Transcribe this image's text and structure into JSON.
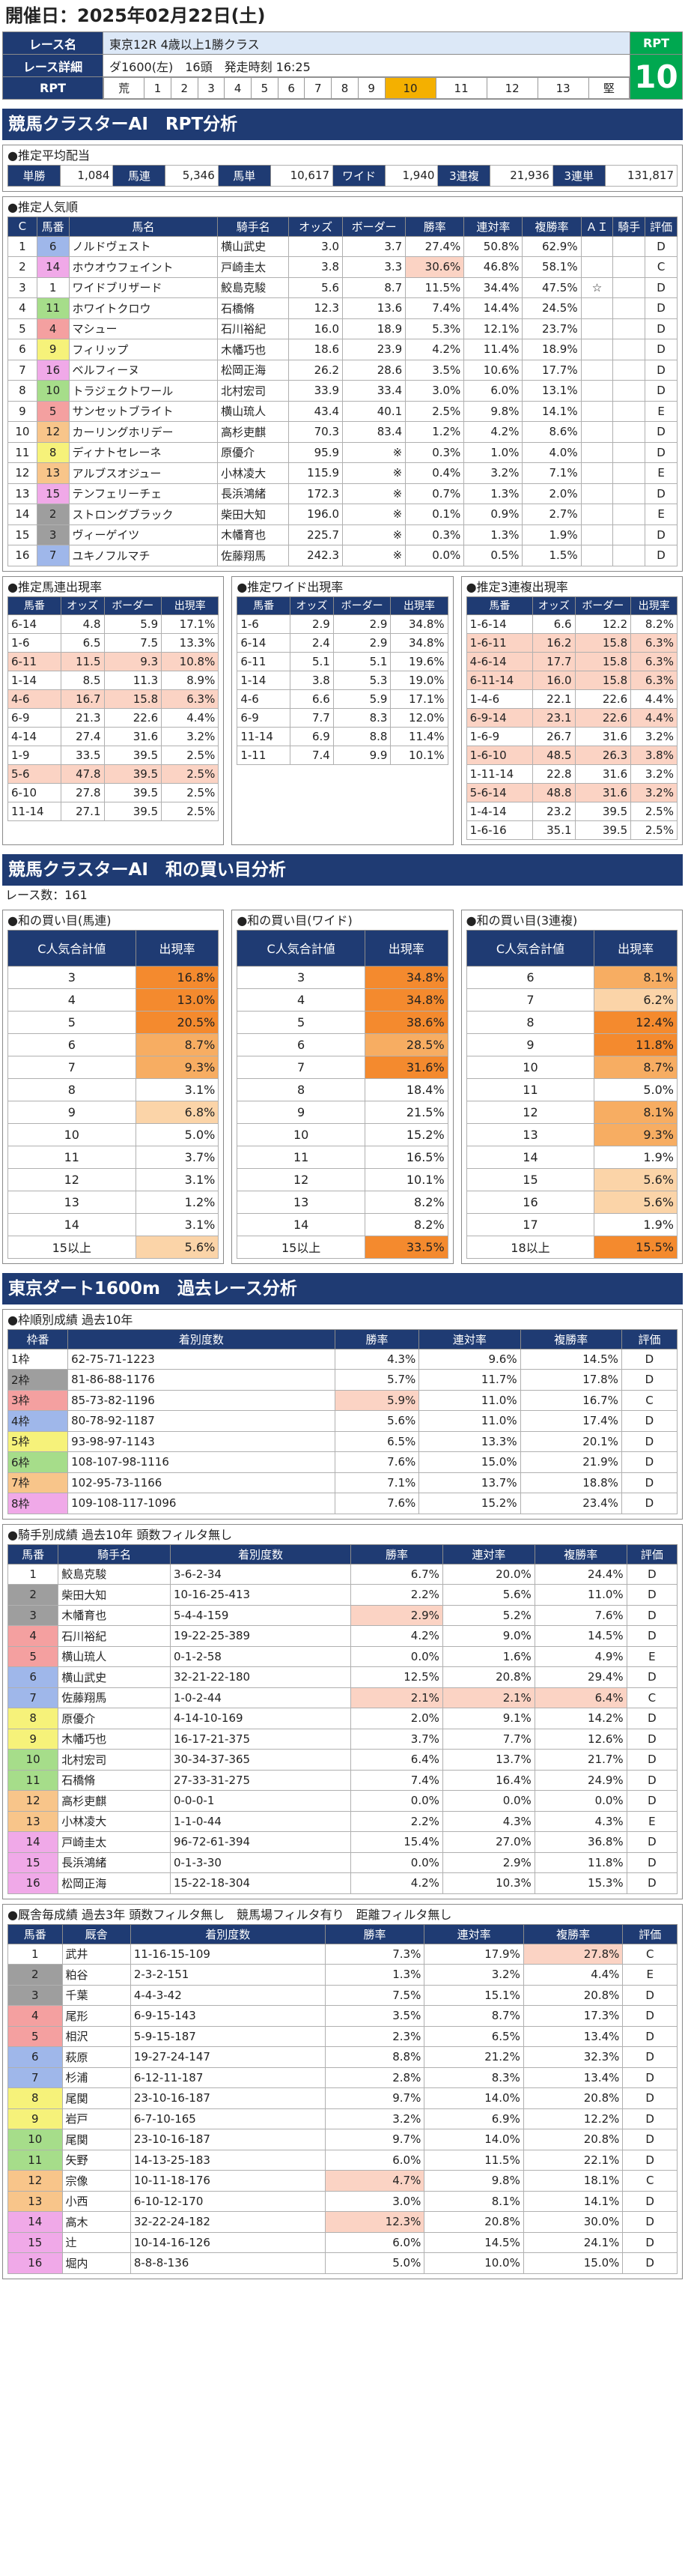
{
  "header": {
    "date": "開催日：2025年02月22日(土)"
  },
  "race": {
    "name_label": "レース名",
    "name": "東京12R 4歳以上1勝クラス",
    "detail_label": "レース詳細",
    "detail": "ダ1600(左)　16頭　発走時刻 16:25",
    "rpt_label": "RPT",
    "rpt_value": "10",
    "nums": [
      "荒",
      "1",
      "2",
      "3",
      "4",
      "5",
      "6",
      "7",
      "8",
      "9",
      "10",
      "11",
      "12",
      "13",
      "堅"
    ],
    "highlight_index": 10
  },
  "sec1": {
    "title": "競馬クラスターAI　RPT分析"
  },
  "avg": {
    "title": "●推定平均配当",
    "items": [
      [
        "単勝",
        "1,084"
      ],
      [
        "馬連",
        "5,346"
      ],
      [
        "馬単",
        "10,617"
      ],
      [
        "ワイド",
        "1,940"
      ],
      [
        "3連複",
        "21,936"
      ],
      [
        "3連単",
        "131,817"
      ]
    ]
  },
  "pop": {
    "title": "●推定人気順",
    "headers": [
      "C",
      "馬番",
      "馬名",
      "騎手名",
      "オッズ",
      "ボーダー",
      "勝率",
      "連対率",
      "複勝率",
      "ＡＩ",
      "騎手",
      "評価"
    ],
    "rows": [
      [
        "1",
        "6",
        "ノルドヴェスト",
        "横山武史",
        "3.0",
        "3.7",
        "27.4%",
        "50.8%",
        "62.9%",
        "",
        "",
        "D"
      ],
      [
        "2",
        "14",
        "ホウオウフェイント",
        "戸崎圭太",
        "3.8",
        "3.3",
        "30.6%",
        "46.8%",
        "58.1%",
        "",
        "",
        "C"
      ],
      [
        "3",
        "1",
        "ワイドブリザード",
        "鮫島克駿",
        "5.6",
        "8.7",
        "11.5%",
        "34.4%",
        "47.5%",
        "☆",
        "",
        "D"
      ],
      [
        "4",
        "11",
        "ホワイトクロウ",
        "石橋脩",
        "12.3",
        "13.6",
        "7.4%",
        "14.4%",
        "24.5%",
        "",
        "",
        "D"
      ],
      [
        "5",
        "4",
        "マシュー",
        "石川裕紀",
        "16.0",
        "18.9",
        "5.3%",
        "12.1%",
        "23.7%",
        "",
        "",
        "D"
      ],
      [
        "6",
        "9",
        "フィリップ",
        "木幡巧也",
        "18.6",
        "23.9",
        "4.2%",
        "11.4%",
        "18.9%",
        "",
        "",
        "D"
      ],
      [
        "7",
        "16",
        "ベルフィーヌ",
        "松岡正海",
        "26.2",
        "28.6",
        "3.5%",
        "10.6%",
        "17.7%",
        "",
        "",
        "D"
      ],
      [
        "8",
        "10",
        "トラジェクトワール",
        "北村宏司",
        "33.9",
        "33.4",
        "3.0%",
        "6.0%",
        "13.1%",
        "",
        "",
        "D"
      ],
      [
        "9",
        "5",
        "サンセットブライト",
        "横山琉人",
        "43.4",
        "40.1",
        "2.5%",
        "9.8%",
        "14.1%",
        "",
        "",
        "E"
      ],
      [
        "10",
        "12",
        "カーリングホリデー",
        "高杉吏麒",
        "70.3",
        "83.4",
        "1.2%",
        "4.2%",
        "8.6%",
        "",
        "",
        "D"
      ],
      [
        "11",
        "8",
        "ディナトセレーネ",
        "原優介",
        "95.9",
        "※",
        "0.3%",
        "1.0%",
        "4.0%",
        "",
        "",
        "D"
      ],
      [
        "12",
        "13",
        "アルブスオジュー",
        "小林凌大",
        "115.9",
        "※",
        "0.4%",
        "3.2%",
        "7.1%",
        "",
        "",
        "E"
      ],
      [
        "13",
        "15",
        "テンフェリーチェ",
        "長浜鴻緒",
        "172.3",
        "※",
        "0.7%",
        "1.3%",
        "2.0%",
        "",
        "",
        "D"
      ],
      [
        "14",
        "2",
        "ストロングブラック",
        "柴田大知",
        "196.0",
        "※",
        "0.1%",
        "0.9%",
        "2.7%",
        "",
        "",
        "E"
      ],
      [
        "15",
        "3",
        "ヴィーゲイツ",
        "木幡育也",
        "225.7",
        "※",
        "0.3%",
        "1.3%",
        "1.9%",
        "",
        "",
        "D"
      ],
      [
        "16",
        "7",
        "ユキノフルマチ",
        "佐藤翔馬",
        "242.3",
        "※",
        "0.0%",
        "0.5%",
        "1.5%",
        "",
        "",
        "D"
      ]
    ]
  },
  "umaren": {
    "title": "●推定馬連出現率",
    "headers": [
      "馬番",
      "オッズ",
      "ボーダー",
      "出現率"
    ],
    "rows": [
      [
        "6-14",
        "4.8",
        "5.9",
        "17.1%"
      ],
      [
        "1-6",
        "6.5",
        "7.5",
        "13.3%"
      ],
      [
        "6-11",
        "11.5",
        "9.3",
        "10.8%"
      ],
      [
        "1-14",
        "8.5",
        "11.3",
        "8.9%"
      ],
      [
        "4-6",
        "16.7",
        "15.8",
        "6.3%"
      ],
      [
        "6-9",
        "21.3",
        "22.6",
        "4.4%"
      ],
      [
        "4-14",
        "27.4",
        "31.6",
        "3.2%"
      ],
      [
        "1-9",
        "33.5",
        "39.5",
        "2.5%"
      ],
      [
        "5-6",
        "47.8",
        "39.5",
        "2.5%"
      ],
      [
        "6-10",
        "27.8",
        "39.5",
        "2.5%"
      ],
      [
        "11-14",
        "27.1",
        "39.5",
        "2.5%"
      ]
    ]
  },
  "wide": {
    "title": "●推定ワイド出現率",
    "headers": [
      "馬番",
      "オッズ",
      "ボーダー",
      "出現率"
    ],
    "rows": [
      [
        "1-6",
        "2.9",
        "2.9",
        "34.8%"
      ],
      [
        "6-14",
        "2.4",
        "2.9",
        "34.8%"
      ],
      [
        "6-11",
        "5.1",
        "5.1",
        "19.6%"
      ],
      [
        "1-14",
        "3.8",
        "5.3",
        "19.0%"
      ],
      [
        "4-6",
        "6.6",
        "5.9",
        "17.1%"
      ],
      [
        "6-9",
        "7.7",
        "8.3",
        "12.0%"
      ],
      [
        "11-14",
        "6.9",
        "8.8",
        "11.4%"
      ],
      [
        "1-11",
        "7.4",
        "9.9",
        "10.1%"
      ]
    ]
  },
  "sanrenpuku": {
    "title": "●推定3連複出現率",
    "headers": [
      "馬番",
      "オッズ",
      "ボーダー",
      "出現率"
    ],
    "rows": [
      [
        "1-6-14",
        "6.6",
        "12.2",
        "8.2%"
      ],
      [
        "1-6-11",
        "16.2",
        "15.8",
        "6.3%"
      ],
      [
        "4-6-14",
        "17.7",
        "15.8",
        "6.3%"
      ],
      [
        "6-11-14",
        "16.0",
        "15.8",
        "6.3%"
      ],
      [
        "1-4-6",
        "22.1",
        "22.6",
        "4.4%"
      ],
      [
        "6-9-14",
        "23.1",
        "22.6",
        "4.4%"
      ],
      [
        "1-6-9",
        "26.7",
        "31.6",
        "3.2%"
      ],
      [
        "1-6-10",
        "48.5",
        "26.3",
        "3.8%"
      ],
      [
        "1-11-14",
        "22.8",
        "31.6",
        "3.2%"
      ],
      [
        "5-6-14",
        "48.8",
        "31.6",
        "3.2%"
      ],
      [
        "1-4-14",
        "23.2",
        "39.5",
        "2.5%"
      ],
      [
        "1-6-16",
        "35.1",
        "39.5",
        "2.5%"
      ]
    ]
  },
  "sec2": {
    "title": "競馬クラスターAI　和の買い目分析",
    "count": "レース数：161"
  },
  "buy1": {
    "title": "●和の買い目(馬連)",
    "h1": "C人気合計値",
    "h2": "出現率",
    "rows": [
      [
        "3",
        "16.8%"
      ],
      [
        "4",
        "13.0%"
      ],
      [
        "5",
        "20.5%"
      ],
      [
        "6",
        "8.7%"
      ],
      [
        "7",
        "9.3%"
      ],
      [
        "8",
        "3.1%"
      ],
      [
        "9",
        "6.8%"
      ],
      [
        "10",
        "5.0%"
      ],
      [
        "11",
        "3.7%"
      ],
      [
        "12",
        "3.1%"
      ],
      [
        "13",
        "1.2%"
      ],
      [
        "14",
        "3.1%"
      ],
      [
        "15以上",
        "5.6%"
      ]
    ]
  },
  "buy2": {
    "title": "●和の買い目(ワイド)",
    "h1": "C人気合計値",
    "h2": "出現率",
    "rows": [
      [
        "3",
        "34.8%"
      ],
      [
        "4",
        "34.8%"
      ],
      [
        "5",
        "38.6%"
      ],
      [
        "6",
        "28.5%"
      ],
      [
        "7",
        "31.6%"
      ],
      [
        "8",
        "18.4%"
      ],
      [
        "9",
        "21.5%"
      ],
      [
        "10",
        "15.2%"
      ],
      [
        "11",
        "16.5%"
      ],
      [
        "12",
        "10.1%"
      ],
      [
        "13",
        "8.2%"
      ],
      [
        "14",
        "8.2%"
      ],
      [
        "15以上",
        "33.5%"
      ]
    ]
  },
  "buy3": {
    "title": "●和の買い目(3連複)",
    "h1": "C人気合計値",
    "h2": "出現率",
    "rows": [
      [
        "6",
        "8.1%"
      ],
      [
        "7",
        "6.2%"
      ],
      [
        "8",
        "12.4%"
      ],
      [
        "9",
        "11.8%"
      ],
      [
        "10",
        "8.7%"
      ],
      [
        "11",
        "5.0%"
      ],
      [
        "12",
        "8.1%"
      ],
      [
        "13",
        "9.3%"
      ],
      [
        "14",
        "1.9%"
      ],
      [
        "15",
        "5.6%"
      ],
      [
        "16",
        "5.6%"
      ],
      [
        "17",
        "1.9%"
      ],
      [
        "18以上",
        "15.5%"
      ]
    ]
  },
  "sec3": {
    "title": "東京ダート1600m　過去レース分析"
  },
  "waku": {
    "title": "●枠順別成績 過去10年",
    "headers": [
      "枠番",
      "着別度数",
      "勝率",
      "連対率",
      "複勝率",
      "評価"
    ],
    "rows": [
      [
        "1枠",
        "62-75-71-1223",
        "4.3%",
        "9.6%",
        "14.5%",
        "D"
      ],
      [
        "2枠",
        "81-86-88-1176",
        "5.7%",
        "11.7%",
        "17.8%",
        "D"
      ],
      [
        "3枠",
        "85-73-82-1196",
        "5.9%",
        "11.0%",
        "16.7%",
        "C"
      ],
      [
        "4枠",
        "80-78-92-1187",
        "5.6%",
        "11.0%",
        "17.4%",
        "D"
      ],
      [
        "5枠",
        "93-98-97-1143",
        "6.5%",
        "13.3%",
        "20.1%",
        "D"
      ],
      [
        "6枠",
        "108-107-98-1116",
        "7.6%",
        "15.0%",
        "21.9%",
        "D"
      ],
      [
        "7枠",
        "102-95-73-1166",
        "7.1%",
        "13.7%",
        "18.8%",
        "D"
      ],
      [
        "8枠",
        "109-108-117-1096",
        "7.6%",
        "15.2%",
        "23.4%",
        "D"
      ]
    ]
  },
  "jockey": {
    "title": "●騎手別成績 過去10年 頭数フィルタ無し",
    "headers": [
      "馬番",
      "騎手名",
      "着別度数",
      "勝率",
      "連対率",
      "複勝率",
      "評価"
    ],
    "rows": [
      [
        "1",
        "鮫島克駿",
        "3-6-2-34",
        "6.7%",
        "20.0%",
        "24.4%",
        "D"
      ],
      [
        "2",
        "柴田大知",
        "10-16-25-413",
        "2.2%",
        "5.6%",
        "11.0%",
        "D"
      ],
      [
        "3",
        "木幡育也",
        "5-4-4-159",
        "2.9%",
        "5.2%",
        "7.6%",
        "D"
      ],
      [
        "4",
        "石川裕紀",
        "19-22-25-389",
        "4.2%",
        "9.0%",
        "14.5%",
        "D"
      ],
      [
        "5",
        "横山琉人",
        "0-1-2-58",
        "0.0%",
        "1.6%",
        "4.9%",
        "E"
      ],
      [
        "6",
        "横山武史",
        "32-21-22-180",
        "12.5%",
        "20.8%",
        "29.4%",
        "D"
      ],
      [
        "7",
        "佐藤翔馬",
        "1-0-2-44",
        "2.1%",
        "2.1%",
        "6.4%",
        "C"
      ],
      [
        "8",
        "原優介",
        "4-14-10-169",
        "2.0%",
        "9.1%",
        "14.2%",
        "D"
      ],
      [
        "9",
        "木幡巧也",
        "16-17-21-375",
        "3.7%",
        "7.7%",
        "12.6%",
        "D"
      ],
      [
        "10",
        "北村宏司",
        "30-34-37-365",
        "6.4%",
        "13.7%",
        "21.7%",
        "D"
      ],
      [
        "11",
        "石橋脩",
        "27-33-31-275",
        "7.4%",
        "16.4%",
        "24.9%",
        "D"
      ],
      [
        "12",
        "高杉吏麒",
        "0-0-0-1",
        "0.0%",
        "0.0%",
        "0.0%",
        "D"
      ],
      [
        "13",
        "小林凌大",
        "1-1-0-44",
        "2.2%",
        "4.3%",
        "4.3%",
        "E"
      ],
      [
        "14",
        "戸崎圭太",
        "96-72-61-394",
        "15.4%",
        "27.0%",
        "36.8%",
        "D"
      ],
      [
        "15",
        "長浜鴻緒",
        "0-1-3-30",
        "0.0%",
        "2.9%",
        "11.8%",
        "D"
      ],
      [
        "16",
        "松岡正海",
        "15-22-18-304",
        "4.2%",
        "10.3%",
        "15.3%",
        "D"
      ]
    ]
  },
  "sire": {
    "title": "●厩舎毎成績 過去3年 頭数フィルタ無し　競馬場フィルタ有り　距離フィルタ無し",
    "headers": [
      "馬番",
      "厩舎",
      "着別度数",
      "勝率",
      "連対率",
      "複勝率",
      "評価"
    ],
    "rows": [
      [
        "1",
        "武井",
        "11-16-15-109",
        "7.3%",
        "17.9%",
        "27.8%",
        "C"
      ],
      [
        "2",
        "粕谷",
        "2-3-2-151",
        "1.3%",
        "3.2%",
        "4.4%",
        "E"
      ],
      [
        "3",
        "千葉",
        "4-4-3-42",
        "7.5%",
        "15.1%",
        "20.8%",
        "D"
      ],
      [
        "4",
        "尾形",
        "6-9-15-143",
        "3.5%",
        "8.7%",
        "17.3%",
        "D"
      ],
      [
        "5",
        "相沢",
        "5-9-15-187",
        "2.3%",
        "6.5%",
        "13.4%",
        "D"
      ],
      [
        "6",
        "萩原",
        "19-27-24-147",
        "8.8%",
        "21.2%",
        "32.3%",
        "D"
      ],
      [
        "7",
        "杉浦",
        "6-12-11-187",
        "2.8%",
        "8.3%",
        "13.4%",
        "D"
      ],
      [
        "8",
        "尾関",
        "23-10-16-187",
        "9.7%",
        "14.0%",
        "20.8%",
        "D"
      ],
      [
        "9",
        "岩戸",
        "6-7-10-165",
        "3.2%",
        "6.9%",
        "12.2%",
        "D"
      ],
      [
        "10",
        "尾関",
        "23-10-16-187",
        "9.7%",
        "14.0%",
        "20.8%",
        "D"
      ],
      [
        "11",
        "矢野",
        "14-13-25-183",
        "6.0%",
        "11.5%",
        "22.1%",
        "D"
      ],
      [
        "12",
        "宗像",
        "10-11-18-176",
        "4.7%",
        "9.8%",
        "18.1%",
        "C"
      ],
      [
        "13",
        "小西",
        "6-10-12-170",
        "3.0%",
        "8.1%",
        "14.1%",
        "D"
      ],
      [
        "14",
        "高木",
        "32-22-24-182",
        "12.3%",
        "20.8%",
        "30.0%",
        "D"
      ],
      [
        "15",
        "辻",
        "10-14-16-126",
        "6.0%",
        "14.5%",
        "24.1%",
        "D"
      ],
      [
        "16",
        "堀内",
        "8-8-8-136",
        "5.0%",
        "10.0%",
        "15.0%",
        "D"
      ]
    ]
  },
  "colors": {
    "header": "#1f3b73",
    "rpt": "#00a850",
    "highlight": "#f4b000"
  }
}
